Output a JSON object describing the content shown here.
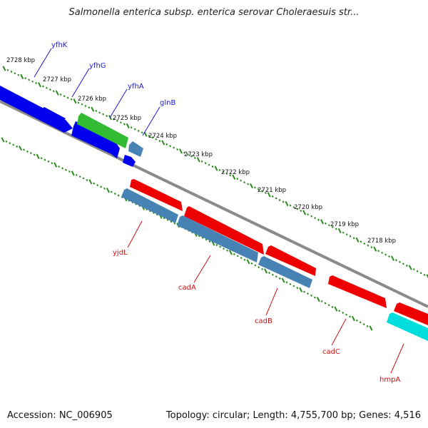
{
  "title": "Salmonella enterica subsp. enterica serovar Choleraesuis str...",
  "footer": {
    "accession": "Accession: NC_006905",
    "summary": "Topology: circular; Length: 4,755,700 bp; Genes: 4,516"
  },
  "colors": {
    "backbone": "#8a8a8a",
    "tick": "#2b8a1e",
    "label_top": "#1a1acc",
    "label_bottom": "#cc1111"
  },
  "kbp_labels": [
    "2728 kbp",
    "2727 kbp",
    "2726 kbp",
    "2725 kbp",
    "2724 kbp",
    "2723 kbp",
    "2722 kbp",
    "2721 kbp",
    "2720 kbp",
    "2719 kbp",
    "2718 kbp"
  ],
  "genes_top": [
    {
      "name": "yfhK",
      "color": "#0000ee"
    },
    {
      "name": "yfhG",
      "color": "#0000ee"
    },
    {
      "name": "yfhA",
      "color": "#33bb33"
    },
    {
      "name": "glnB",
      "color": "#4682b4"
    }
  ],
  "genes_bottom": [
    {
      "name": "yjdL",
      "color": "#4682b4"
    },
    {
      "name": "cadA",
      "color": "#ee0000"
    },
    {
      "name": "cadB",
      "color": "#4682b4"
    },
    {
      "name": "cadC",
      "color": "#ee0000"
    },
    {
      "name": "hmpA",
      "color": "#00dddd"
    }
  ]
}
